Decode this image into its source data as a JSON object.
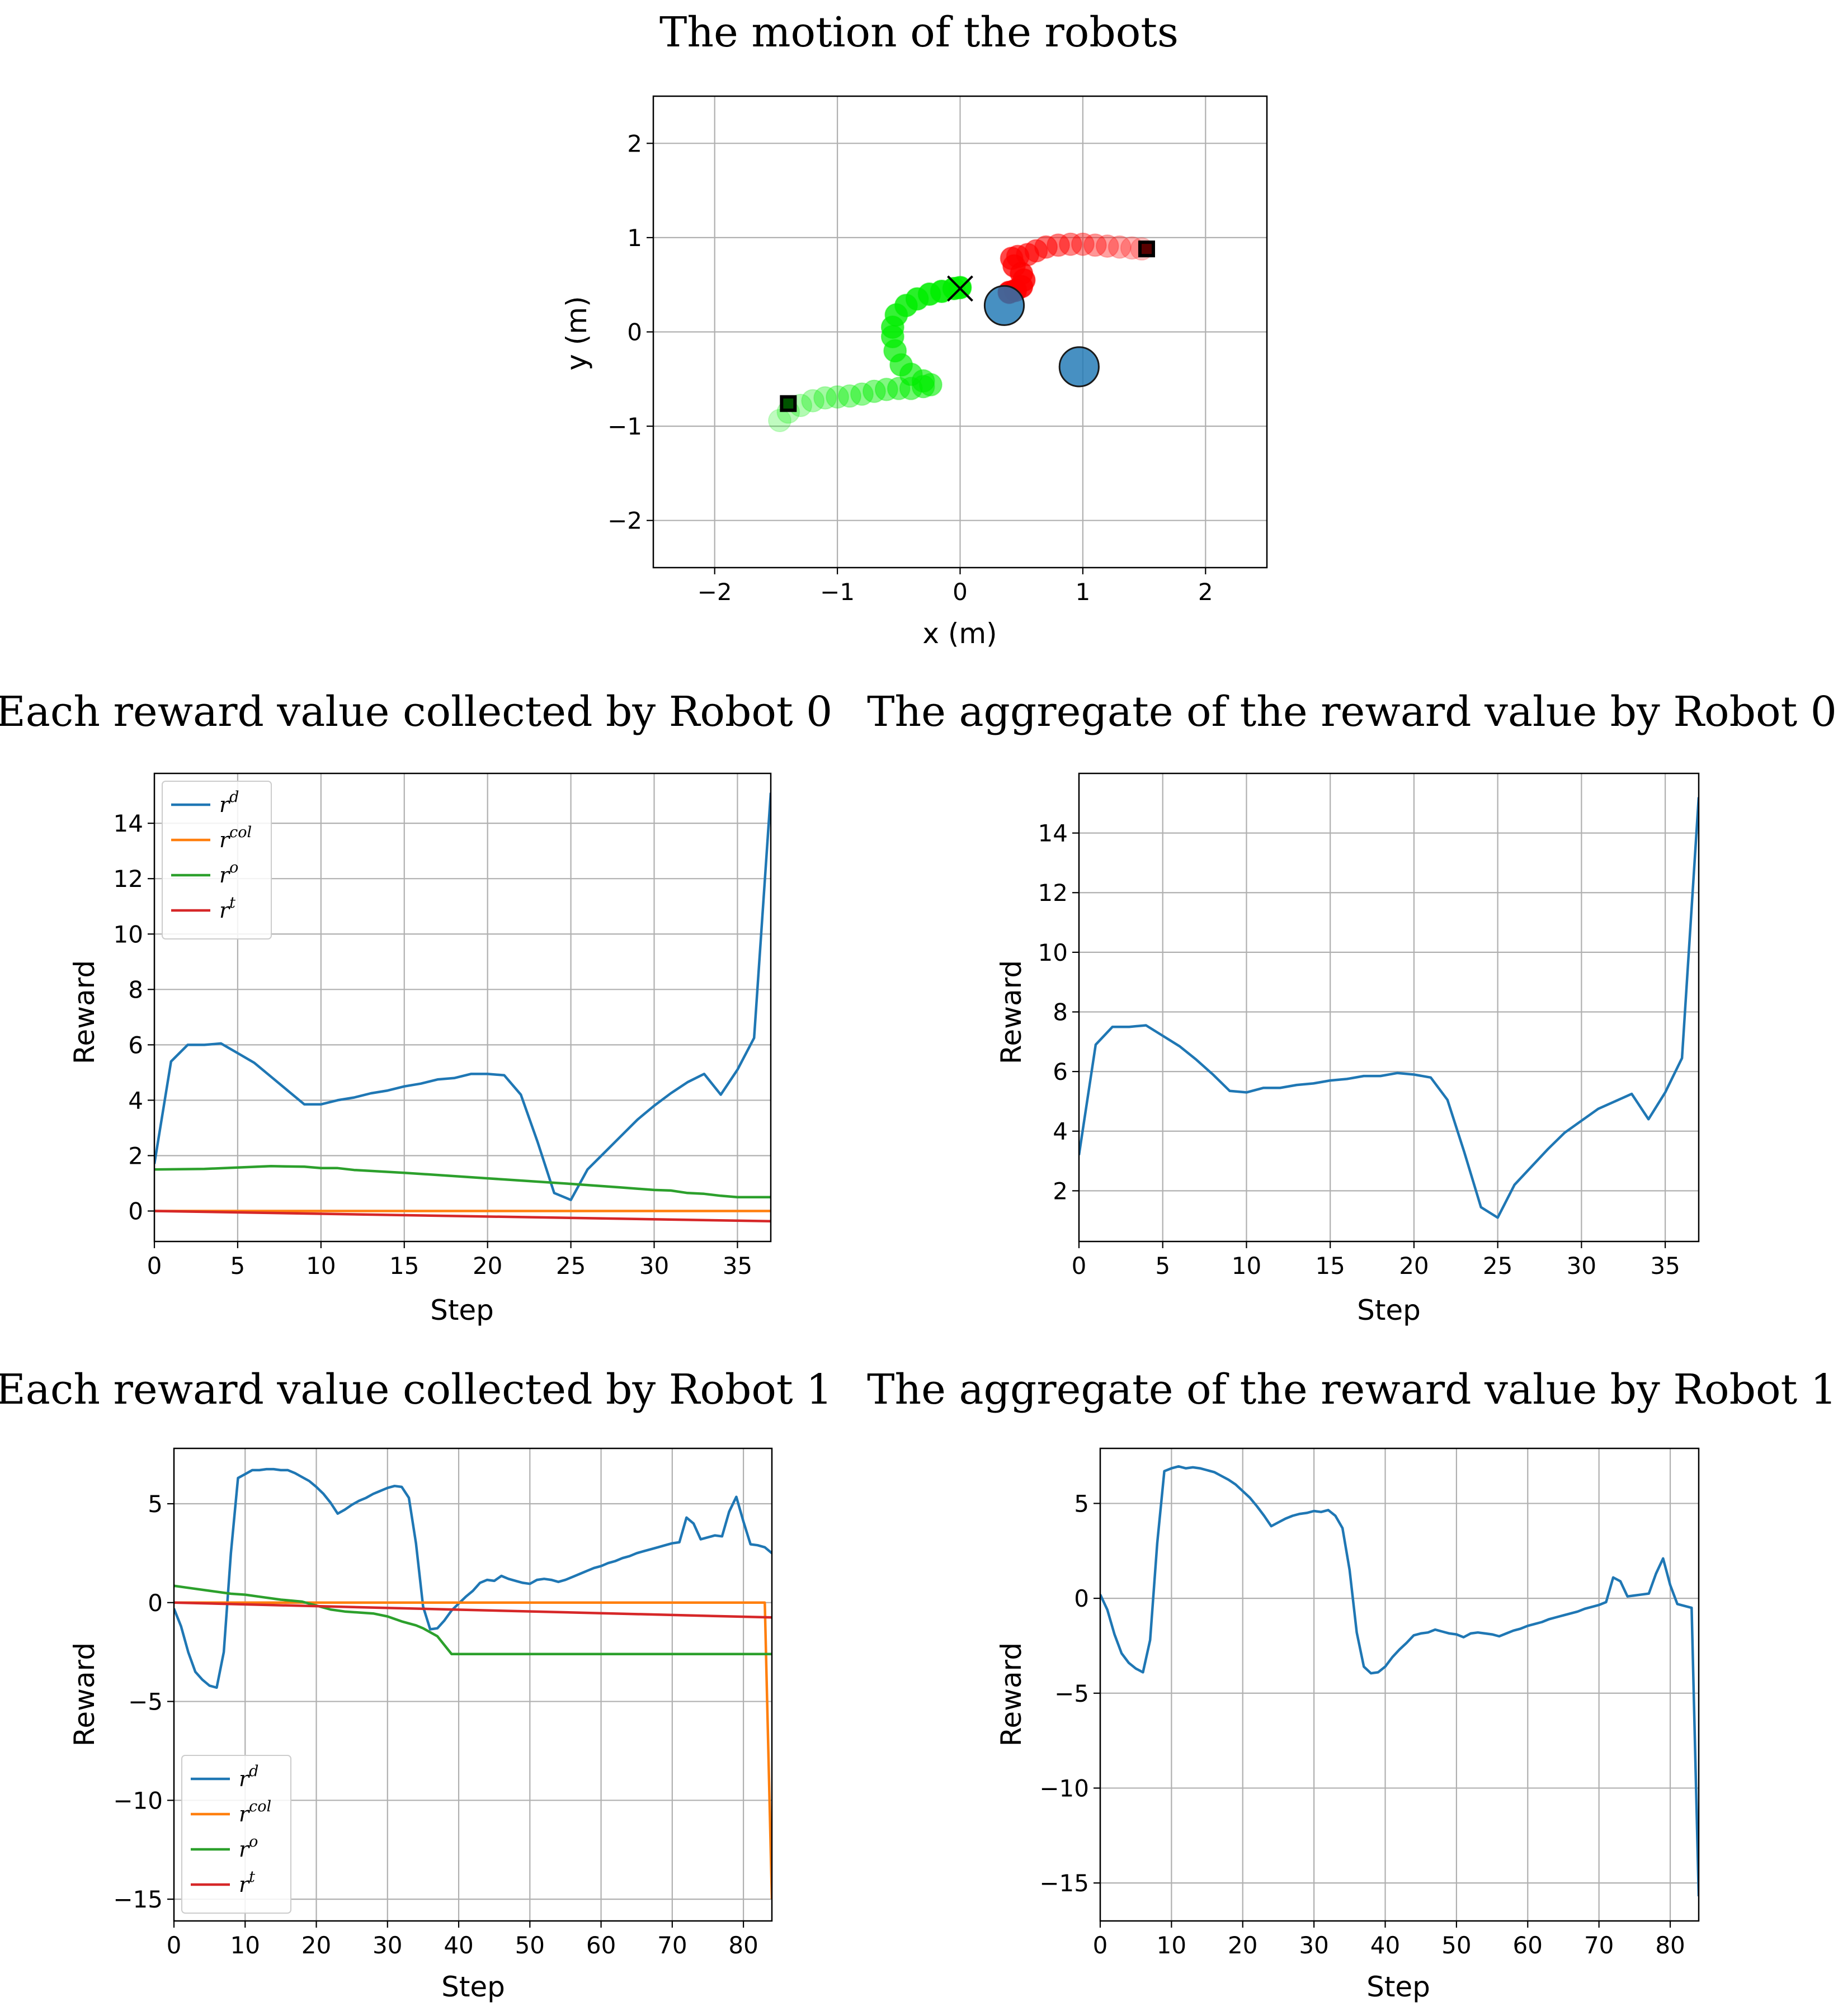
{
  "chart_data": [
    {
      "id": "motion",
      "type": "scatter",
      "title": "The motion of the robots",
      "xlabel": "x (m)",
      "ylabel": "y (m)",
      "xlim": [
        -2.5,
        2.5
      ],
      "ylim": [
        -2.5,
        2.5
      ],
      "xticks": [
        -2,
        -1,
        0,
        1,
        2
      ],
      "yticks": [
        -2,
        -1,
        0,
        1,
        2
      ],
      "grid": true,
      "obstacles": [
        {
          "x": 0.36,
          "y": 0.28,
          "r": 0.16,
          "color": "#1f77b4"
        },
        {
          "x": 0.97,
          "y": -0.37,
          "r": 0.16,
          "color": "#1f77b4"
        }
      ],
      "paths": [
        {
          "name": "Robot 0",
          "color": "#ff0000",
          "points": [
            [
              1.48,
              0.88
            ],
            [
              1.4,
              0.89
            ],
            [
              1.3,
              0.9
            ],
            [
              1.2,
              0.91
            ],
            [
              1.1,
              0.92
            ],
            [
              1.0,
              0.93
            ],
            [
              0.9,
              0.93
            ],
            [
              0.8,
              0.92
            ],
            [
              0.7,
              0.9
            ],
            [
              0.62,
              0.86
            ],
            [
              0.55,
              0.82
            ],
            [
              0.47,
              0.8
            ],
            [
              0.42,
              0.78
            ],
            [
              0.44,
              0.7
            ],
            [
              0.5,
              0.62
            ],
            [
              0.52,
              0.55
            ],
            [
              0.5,
              0.48
            ],
            [
              0.45,
              0.44
            ],
            [
              0.4,
              0.42
            ]
          ],
          "start_marker": {
            "x": 1.52,
            "y": 0.88
          },
          "goal_marker": null
        },
        {
          "name": "Robot 1",
          "color": "#00ee00",
          "points": [
            [
              -1.47,
              -0.94
            ],
            [
              -1.4,
              -0.85
            ],
            [
              -1.3,
              -0.78
            ],
            [
              -1.2,
              -0.73
            ],
            [
              -1.1,
              -0.7
            ],
            [
              -1.0,
              -0.69
            ],
            [
              -0.9,
              -0.68
            ],
            [
              -0.8,
              -0.66
            ],
            [
              -0.7,
              -0.63
            ],
            [
              -0.6,
              -0.61
            ],
            [
              -0.5,
              -0.6
            ],
            [
              -0.4,
              -0.6
            ],
            [
              -0.3,
              -0.58
            ],
            [
              -0.24,
              -0.56
            ],
            [
              -0.3,
              -0.52
            ],
            [
              -0.4,
              -0.45
            ],
            [
              -0.48,
              -0.35
            ],
            [
              -0.53,
              -0.2
            ],
            [
              -0.55,
              -0.05
            ],
            [
              -0.55,
              0.05
            ],
            [
              -0.52,
              0.18
            ],
            [
              -0.44,
              0.28
            ],
            [
              -0.35,
              0.35
            ],
            [
              -0.25,
              0.4
            ],
            [
              -0.15,
              0.43
            ],
            [
              -0.05,
              0.46
            ],
            [
              0.0,
              0.47
            ]
          ],
          "start_marker": {
            "x": -1.4,
            "y": -0.76
          },
          "goal_marker": {
            "x": 0.0,
            "y": 0.46
          }
        }
      ]
    },
    {
      "id": "r0_each",
      "type": "line",
      "title": "Each reward value collected by Robot 0",
      "xlabel": "Step",
      "ylabel": "Reward",
      "xlim": [
        0,
        37
      ],
      "ylim": [
        -1.1,
        15.8
      ],
      "xticks": [
        0,
        5,
        10,
        15,
        20,
        25,
        30,
        35
      ],
      "yticks": [
        0,
        2,
        4,
        6,
        8,
        10,
        12,
        14
      ],
      "grid": true,
      "legend_position": "top-left",
      "series": [
        {
          "name": "r",
          "sup": "d",
          "color": "#1f77b4",
          "x": [
            0,
            1,
            2,
            3,
            4,
            5,
            6,
            7,
            8,
            9,
            10,
            11,
            12,
            13,
            14,
            15,
            16,
            17,
            18,
            19,
            20,
            21,
            22,
            23,
            24,
            25,
            26,
            27,
            28,
            29,
            30,
            31,
            32,
            33,
            34,
            35,
            36,
            37
          ],
          "y": [
            1.7,
            5.4,
            6.0,
            6.0,
            6.05,
            5.7,
            5.35,
            4.85,
            4.35,
            3.85,
            3.85,
            4.0,
            4.1,
            4.25,
            4.35,
            4.5,
            4.6,
            4.75,
            4.8,
            4.95,
            4.95,
            4.9,
            4.2,
            2.5,
            0.65,
            0.4,
            1.5,
            2.1,
            2.7,
            3.3,
            3.8,
            4.25,
            4.65,
            4.95,
            4.2,
            5.1,
            6.25,
            15.1
          ]
        },
        {
          "name": "r",
          "sup": "col",
          "color": "#ff7f0e",
          "x": [
            0,
            37
          ],
          "y": [
            0.0,
            0.0
          ]
        },
        {
          "name": "r",
          "sup": "o",
          "color": "#2ca02c",
          "x": [
            0,
            3,
            5,
            7,
            9,
            10,
            11,
            12,
            15,
            20,
            25,
            28,
            30,
            31,
            32,
            33,
            34,
            35,
            36,
            37
          ],
          "y": [
            1.5,
            1.52,
            1.57,
            1.62,
            1.6,
            1.55,
            1.55,
            1.48,
            1.38,
            1.18,
            0.98,
            0.85,
            0.76,
            0.74,
            0.65,
            0.62,
            0.55,
            0.5,
            0.5,
            0.5
          ]
        },
        {
          "name": "r",
          "sup": "t",
          "color": "#d62728",
          "x": [
            0,
            37
          ],
          "y": [
            0.0,
            -0.37
          ]
        }
      ]
    },
    {
      "id": "r0_agg",
      "type": "line",
      "title": "The aggregate of the reward value by Robot 0",
      "xlabel": "Step",
      "ylabel": "Reward",
      "xlim": [
        0,
        37
      ],
      "ylim": [
        0.3,
        16.0
      ],
      "xticks": [
        0,
        5,
        10,
        15,
        20,
        25,
        30,
        35
      ],
      "yticks": [
        2,
        4,
        6,
        8,
        10,
        12,
        14
      ],
      "grid": true,
      "legend_position": "none",
      "series": [
        {
          "name": "r",
          "sup": "",
          "color": "#1f77b4",
          "x": [
            0,
            1,
            2,
            3,
            4,
            5,
            6,
            7,
            8,
            9,
            10,
            11,
            12,
            13,
            14,
            15,
            16,
            17,
            18,
            19,
            20,
            21,
            22,
            23,
            24,
            25,
            26,
            27,
            28,
            29,
            30,
            31,
            32,
            33,
            34,
            35,
            36,
            37
          ],
          "y": [
            3.2,
            6.9,
            7.5,
            7.5,
            7.55,
            7.2,
            6.85,
            6.4,
            5.9,
            5.35,
            5.3,
            5.45,
            5.45,
            5.55,
            5.6,
            5.7,
            5.75,
            5.85,
            5.85,
            5.95,
            5.9,
            5.8,
            5.05,
            3.3,
            1.45,
            1.1,
            2.2,
            2.8,
            3.4,
            3.95,
            4.35,
            4.75,
            5.0,
            5.25,
            4.4,
            5.3,
            6.45,
            15.2
          ]
        }
      ]
    },
    {
      "id": "r1_each",
      "type": "line",
      "title": "Each reward value collected by Robot 1",
      "xlabel": "Step",
      "ylabel": "Reward",
      "xlim": [
        0,
        84
      ],
      "ylim": [
        -16.1,
        7.8
      ],
      "xticks": [
        0,
        10,
        20,
        30,
        40,
        50,
        60,
        70,
        80
      ],
      "yticks": [
        -15,
        -10,
        -5,
        0,
        5
      ],
      "grid": true,
      "legend_position": "bottom-left",
      "series": [
        {
          "name": "r",
          "sup": "d",
          "color": "#1f77b4",
          "x": [
            0,
            1,
            2,
            3,
            4,
            5,
            6,
            7,
            8,
            9,
            10,
            11,
            12,
            13,
            14,
            15,
            16,
            17,
            18,
            19,
            20,
            21,
            22,
            23,
            24,
            25,
            26,
            27,
            28,
            29,
            30,
            31,
            32,
            33,
            34,
            35,
            36,
            37,
            38,
            39,
            40,
            41,
            42,
            43,
            44,
            45,
            46,
            47,
            48,
            49,
            50,
            51,
            52,
            53,
            54,
            55,
            56,
            57,
            58,
            59,
            60,
            61,
            62,
            63,
            64,
            65,
            66,
            67,
            68,
            69,
            70,
            71,
            72,
            73,
            74,
            75,
            76,
            77,
            78,
            79,
            80,
            81,
            82,
            83,
            84
          ],
          "y": [
            -0.3,
            -1.2,
            -2.5,
            -3.5,
            -3.9,
            -4.2,
            -4.3,
            -2.5,
            2.5,
            6.3,
            6.5,
            6.7,
            6.7,
            6.75,
            6.75,
            6.7,
            6.7,
            6.55,
            6.35,
            6.15,
            5.85,
            5.5,
            5.05,
            4.5,
            4.7,
            4.95,
            5.15,
            5.3,
            5.5,
            5.65,
            5.8,
            5.9,
            5.85,
            5.3,
            3.0,
            -0.2,
            -1.35,
            -1.3,
            -0.9,
            -0.4,
            -0.05,
            0.3,
            0.6,
            1.0,
            1.15,
            1.1,
            1.35,
            1.2,
            1.1,
            1.0,
            0.95,
            1.15,
            1.2,
            1.15,
            1.05,
            1.15,
            1.3,
            1.45,
            1.6,
            1.75,
            1.85,
            2.0,
            2.1,
            2.25,
            2.35,
            2.5,
            2.6,
            2.7,
            2.8,
            2.9,
            3.0,
            3.05,
            4.3,
            4.0,
            3.2,
            3.3,
            3.4,
            3.35,
            4.6,
            5.35,
            4.1,
            2.95,
            2.9,
            2.8,
            2.5
          ]
        },
        {
          "name": "r",
          "sup": "col",
          "color": "#ff7f0e",
          "x": [
            0,
            83,
            84
          ],
          "y": [
            0.0,
            0.0,
            -15.0
          ]
        },
        {
          "name": "r",
          "sup": "o",
          "color": "#2ca02c",
          "x": [
            0,
            2,
            5,
            8,
            10,
            12,
            15,
            18,
            20,
            22,
            24,
            26,
            28,
            30,
            32,
            34,
            35,
            37,
            38,
            39,
            84
          ],
          "y": [
            0.85,
            0.75,
            0.6,
            0.45,
            0.4,
            0.3,
            0.15,
            0.05,
            -0.15,
            -0.35,
            -0.45,
            -0.5,
            -0.55,
            -0.7,
            -0.95,
            -1.15,
            -1.3,
            -1.7,
            -2.15,
            -2.6,
            -2.6
          ]
        },
        {
          "name": "r",
          "sup": "t",
          "color": "#d62728",
          "x": [
            0,
            84
          ],
          "y": [
            0.0,
            -0.75
          ]
        }
      ]
    },
    {
      "id": "r1_agg",
      "type": "line",
      "title": "The aggregate of the reward value by Robot 1",
      "xlabel": "Step",
      "ylabel": "Reward",
      "xlim": [
        0,
        84
      ],
      "ylim": [
        -17.0,
        7.9
      ],
      "xticks": [
        0,
        10,
        20,
        30,
        40,
        50,
        60,
        70,
        80
      ],
      "yticks": [
        -15,
        -10,
        -5,
        0,
        5
      ],
      "grid": true,
      "legend_position": "none",
      "series": [
        {
          "name": "r",
          "sup": "",
          "color": "#1f77b4",
          "x": [
            0,
            1,
            2,
            3,
            4,
            5,
            6,
            7,
            8,
            9,
            10,
            11,
            12,
            13,
            14,
            15,
            16,
            17,
            18,
            19,
            20,
            21,
            22,
            23,
            24,
            25,
            26,
            27,
            28,
            29,
            30,
            31,
            32,
            33,
            34,
            35,
            36,
            37,
            38,
            39,
            40,
            41,
            42,
            43,
            44,
            45,
            46,
            47,
            48,
            49,
            50,
            51,
            52,
            53,
            54,
            55,
            56,
            57,
            58,
            59,
            60,
            61,
            62,
            63,
            64,
            65,
            66,
            67,
            68,
            69,
            70,
            71,
            72,
            73,
            74,
            75,
            76,
            77,
            78,
            79,
            80,
            81,
            82,
            83,
            84
          ],
          "y": [
            0.2,
            -0.6,
            -1.9,
            -2.9,
            -3.4,
            -3.7,
            -3.9,
            -2.2,
            2.9,
            6.7,
            6.85,
            6.95,
            6.85,
            6.9,
            6.85,
            6.75,
            6.65,
            6.45,
            6.25,
            6.0,
            5.65,
            5.3,
            4.85,
            4.35,
            3.8,
            4.0,
            4.2,
            4.35,
            4.45,
            4.5,
            4.6,
            4.55,
            4.65,
            4.35,
            3.7,
            1.5,
            -1.8,
            -3.6,
            -3.95,
            -3.9,
            -3.6,
            -3.1,
            -2.7,
            -2.35,
            -1.95,
            -1.85,
            -1.8,
            -1.65,
            -1.75,
            -1.85,
            -1.9,
            -2.05,
            -1.85,
            -1.8,
            -1.85,
            -1.9,
            -2.0,
            -1.85,
            -1.7,
            -1.6,
            -1.45,
            -1.35,
            -1.25,
            -1.1,
            -1.0,
            -0.9,
            -0.8,
            -0.7,
            -0.55,
            -0.45,
            -0.35,
            -0.2,
            1.1,
            0.9,
            0.1,
            0.15,
            0.2,
            0.25,
            1.3,
            2.1,
            0.7,
            -0.3,
            -0.4,
            -0.5,
            -15.7
          ]
        }
      ]
    }
  ]
}
